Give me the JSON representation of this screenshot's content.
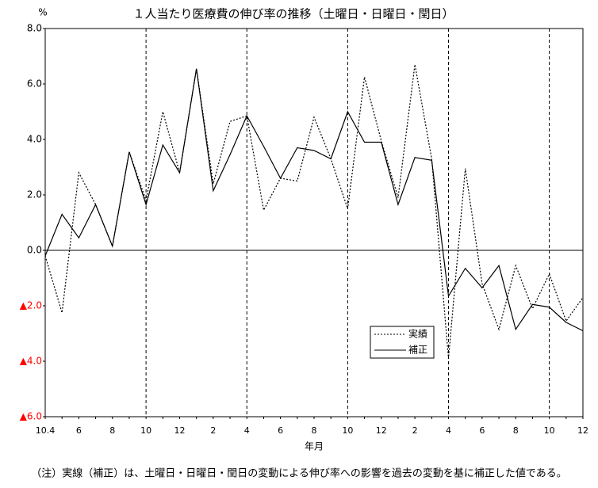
{
  "chart_data": {
    "type": "line",
    "title": "１人当たり医療費の伸び率の推移（土曜日・日曜日・閏日）",
    "y_unit": "%",
    "x_label": "年月",
    "note": "（注）実線（補正）は、土曜日・日曜日・閏日の変動による伸び率への影響を過去の変動を基に補正した値である。",
    "categories": [
      "10.4",
      null,
      "6",
      null,
      "8",
      null,
      "10",
      null,
      "12",
      null,
      "2",
      null,
      "4",
      null,
      "6",
      null,
      "8",
      null,
      "10",
      null,
      "12",
      null,
      "2",
      null,
      "4",
      null,
      "6",
      null,
      "8",
      null,
      "10",
      null,
      "12"
    ],
    "series": [
      {
        "name": "実績",
        "color": "#000000",
        "dash": "dotted",
        "values": [
          -0.2,
          -2.25,
          2.8,
          1.65,
          0.15,
          3.55,
          1.8,
          5.0,
          2.8,
          6.55,
          2.4,
          4.65,
          4.85,
          1.45,
          2.6,
          2.5,
          4.8,
          3.3,
          1.5,
          6.25,
          3.95,
          1.9,
          6.7,
          3.3,
          -3.9,
          2.95,
          -1.2,
          -2.85,
          -0.55,
          -2.1,
          -0.85,
          -2.55,
          -1.7
        ]
      },
      {
        "name": "補正",
        "color": "#000000",
        "dash": "solid",
        "values": [
          -0.2,
          1.3,
          0.45,
          1.65,
          0.15,
          3.55,
          1.65,
          3.8,
          2.8,
          6.55,
          2.15,
          3.45,
          4.85,
          3.75,
          2.6,
          3.7,
          3.6,
          3.3,
          5.0,
          3.9,
          3.9,
          1.65,
          3.35,
          3.25,
          -1.65,
          -0.65,
          -1.35,
          -0.55,
          -2.85,
          -1.95,
          -2.05,
          -2.6,
          -2.9
        ]
      }
    ],
    "ylim": [
      -6,
      8
    ],
    "yticks": [
      {
        "value": 8,
        "label": "8.0"
      },
      {
        "value": 6,
        "label": "6.0"
      },
      {
        "value": 4,
        "label": "4.0"
      },
      {
        "value": 2,
        "label": "2.0"
      },
      {
        "value": 0,
        "label": "0.0"
      },
      {
        "value": -2,
        "label": "▲2.0"
      },
      {
        "value": -4,
        "label": "▲4.0"
      },
      {
        "value": -6,
        "label": "▲6.0"
      }
    ],
    "negative_tick_color": "#ff0000",
    "zero_line": true,
    "vlines": [
      6,
      12,
      18,
      24,
      30
    ],
    "legend": "lower-right"
  }
}
